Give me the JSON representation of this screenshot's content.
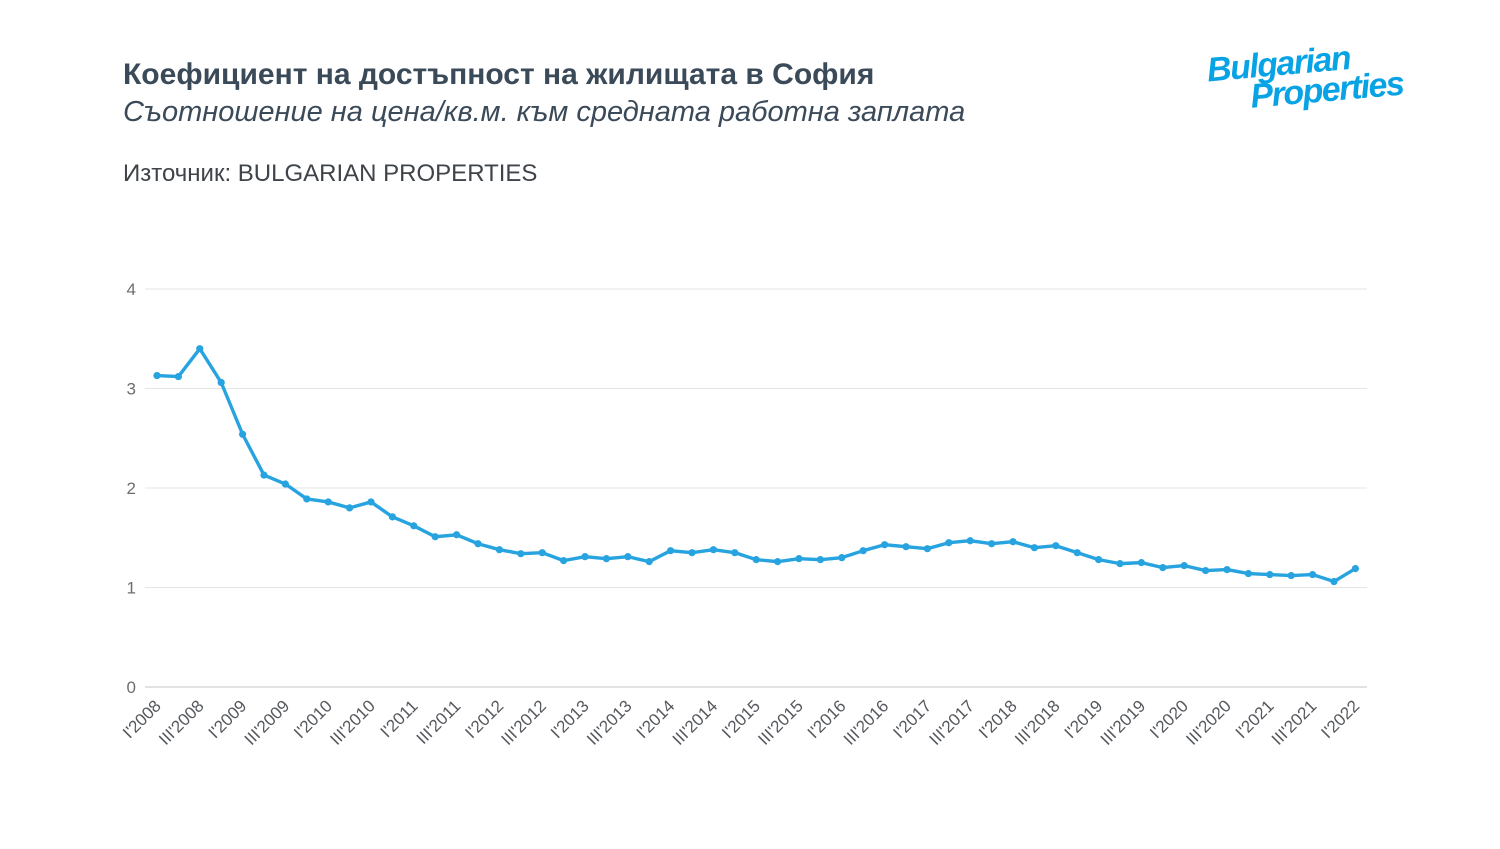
{
  "header": {
    "title": "Коефициент на достъпност на жилищата в София",
    "subtitle": "Съотношение на цена/кв.м. към средната работна заплата",
    "source": "Източник: BULGARIAN PROPERTIES"
  },
  "logo": {
    "line1": "Bulgarian",
    "line2": "Properties",
    "color": "#07a3e4"
  },
  "chart_data": {
    "type": "line",
    "title": "Коефициент на достъпност на жилищата в София",
    "xlabel": "",
    "ylabel": "",
    "ylim": [
      0,
      4
    ],
    "yticks": [
      0,
      1,
      2,
      3,
      4
    ],
    "grid": "horizontal",
    "legend": "none",
    "line_color": "#27a3e0",
    "marker": "circle",
    "x": [
      "I'2008",
      "II'2008",
      "III'2008",
      "IV'2008",
      "I'2009",
      "II'2009",
      "III'2009",
      "IV'2009",
      "I'2010",
      "II'2010",
      "III'2010",
      "IV'2010",
      "I'2011",
      "II'2011",
      "III'2011",
      "IV'2011",
      "I'2012",
      "II'2012",
      "III'2012",
      "IV'2012",
      "I'2013",
      "II'2013",
      "III'2013",
      "IV'2013",
      "I'2014",
      "II'2014",
      "III'2014",
      "IV'2014",
      "I'2015",
      "II'2015",
      "III'2015",
      "IV'2015",
      "I'2016",
      "II'2016",
      "III'2016",
      "IV'2016",
      "I'2017",
      "II'2017",
      "III'2017",
      "IV'2017",
      "I'2018",
      "II'2018",
      "III'2018",
      "IV'2018",
      "I'2019",
      "II'2019",
      "III'2019",
      "IV'2019",
      "I'2020",
      "II'2020",
      "III'2020",
      "IV'2020",
      "I'2021",
      "II'2021",
      "III'2021",
      "IV'2021",
      "I'2022"
    ],
    "values": [
      3.13,
      3.12,
      3.4,
      3.06,
      2.54,
      2.13,
      2.04,
      1.89,
      1.86,
      1.8,
      1.86,
      1.71,
      1.62,
      1.51,
      1.53,
      1.44,
      1.38,
      1.34,
      1.35,
      1.27,
      1.31,
      1.29,
      1.31,
      1.26,
      1.37,
      1.35,
      1.38,
      1.35,
      1.28,
      1.26,
      1.29,
      1.28,
      1.3,
      1.37,
      1.43,
      1.41,
      1.39,
      1.45,
      1.47,
      1.44,
      1.46,
      1.4,
      1.42,
      1.35,
      1.28,
      1.24,
      1.25,
      1.2,
      1.22,
      1.17,
      1.18,
      1.14,
      1.13,
      1.12,
      1.13,
      1.06,
      1.19
    ],
    "visible_x_ticks": [
      "I'2008",
      "III'2008",
      "I'2009",
      "III'2009",
      "I'2010",
      "III'2010",
      "I'2011",
      "III'2011",
      "I'2012",
      "III'2012",
      "I'2013",
      "III'2013",
      "I'2014",
      "III'2014",
      "I'2015",
      "III'2015",
      "I'2016",
      "III'2016",
      "I'2017",
      "III'2017",
      "I'2018",
      "III'2018",
      "I'2019",
      "III'2019",
      "I'2020",
      "III'2020",
      "I'2021",
      "III'2021",
      "I'2022"
    ],
    "colors": {
      "gridline": "#e5e5e5",
      "axis_line": "#c4c4c4",
      "y_tick_label": "#6e6e6e",
      "x_tick_label": "#55585d"
    }
  }
}
